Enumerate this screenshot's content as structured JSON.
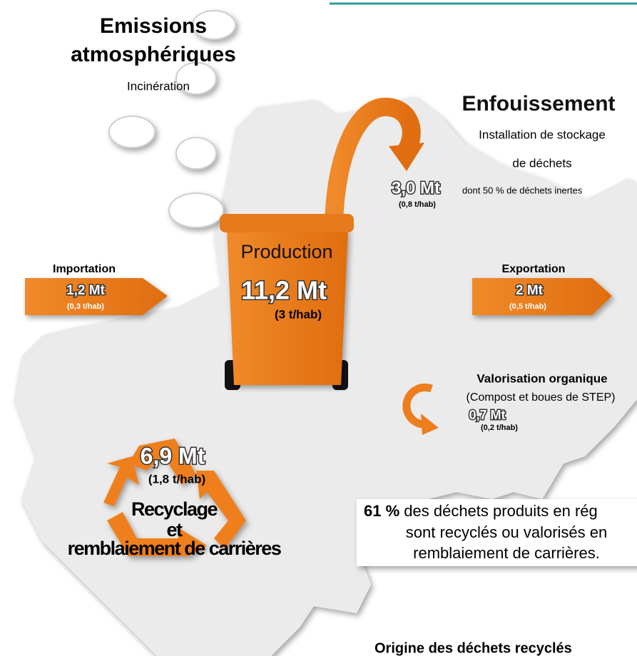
{
  "emissions": {
    "title": [
      "Emissions",
      "atmosphériques"
    ],
    "subtitle": "Incinération"
  },
  "enfouissement": {
    "title": "Enfouissement",
    "subtitle": [
      "Installation de stockage",
      "de déchets"
    ],
    "amount": "3,0 Mt",
    "note": "dont 50 % de déchets inertes",
    "per_capita": "(0,8 t/hab)"
  },
  "importation": {
    "title": "Importation",
    "amount": "1,2 Mt",
    "per_capita": "(0,3 t/hab)"
  },
  "production": {
    "title": "Production",
    "amount": "11,2 Mt",
    "per_capita": "(3 t/hab)"
  },
  "exportation": {
    "title": "Exportation",
    "amount": "2 Mt",
    "per_capita": "(0,5 t/hab)"
  },
  "valorisation": {
    "title": "Valorisation organique",
    "subtitle": "(Compost et boues de STEP)",
    "amount": "0,7 Mt",
    "per_capita": "(0,2 t/hab)"
  },
  "recyclage": {
    "amount": "6,9 Mt",
    "per_capita": "(1,8 t/hab)",
    "label": [
      "Recyclage",
      "et",
      "remblaiement de carrières"
    ]
  },
  "summary": {
    "highlight": "61 %",
    "lines": [
      " des déchets produits en rég",
      "sont recyclés ou valorisés en",
      "remblaiement de carrières."
    ]
  },
  "footer_heading": "Origine des déchets recyclés"
}
